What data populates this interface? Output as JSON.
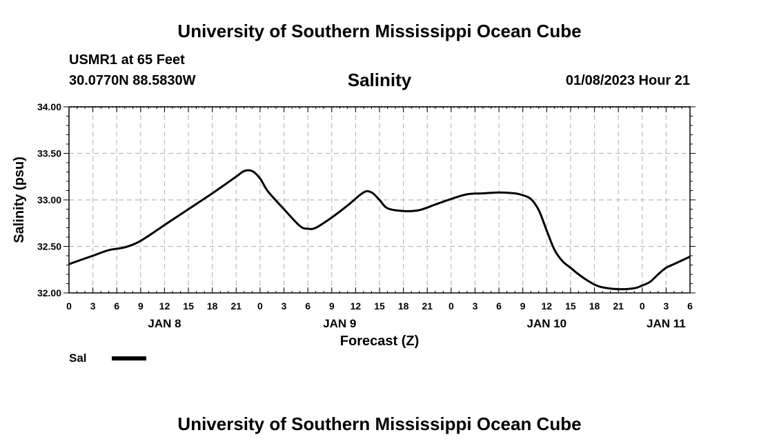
{
  "header": {
    "title": "University of Southern Mississippi Ocean Cube",
    "station": "USMR1 at 65 Feet",
    "coords": "30.0770N  88.5830W",
    "datetime": "01/08/2023 Hour 21"
  },
  "footer": {
    "title": "University of Southern Mississippi Ocean Cube"
  },
  "legend": {
    "label": "Sal",
    "color": "#000000"
  },
  "chart_data": {
    "type": "line",
    "title": "Salinity",
    "xlabel": "Forecast (Z)",
    "ylabel": "Salinity (psu)",
    "xlim": [
      0,
      78
    ],
    "ylim": [
      32.0,
      34.0
    ],
    "x_unit": "hours since 2023-01-08 00Z",
    "grid": true,
    "y_ticks": [
      32.0,
      32.5,
      33.0,
      33.5,
      34.0
    ],
    "y_tick_labels": [
      "32.00",
      "32.50",
      "33.00",
      "33.50",
      "34.00"
    ],
    "x_ticks": [
      0,
      3,
      6,
      9,
      12,
      15,
      18,
      21,
      24,
      27,
      30,
      33,
      36,
      39,
      42,
      45,
      48,
      51,
      54,
      57,
      60,
      63,
      66,
      69,
      72,
      75,
      78
    ],
    "x_tick_labels": [
      "0",
      "3",
      "6",
      "9",
      "12",
      "15",
      "18",
      "21",
      "0",
      "3",
      "6",
      "9",
      "12",
      "15",
      "18",
      "21",
      "0",
      "3",
      "6",
      "9",
      "12",
      "15",
      "18",
      "21",
      "0",
      "3",
      "6"
    ],
    "day_labels": [
      {
        "x": 12,
        "label": "JAN 8"
      },
      {
        "x": 34,
        "label": "JAN 9"
      },
      {
        "x": 60,
        "label": "JAN 10"
      },
      {
        "x": 75,
        "label": "JAN 11"
      }
    ],
    "series": [
      {
        "name": "Sal",
        "x": [
          0,
          3,
          5,
          7,
          9,
          12,
          15,
          18,
          21,
          22,
          23,
          24,
          25,
          27,
          29,
          30,
          31,
          33,
          35,
          37,
          38,
          39,
          40,
          42,
          44,
          46,
          48,
          50,
          52,
          54,
          56,
          57,
          58,
          59,
          60,
          61,
          62,
          63,
          64,
          65,
          66,
          67,
          69,
          71,
          72,
          73,
          74,
          75,
          76,
          77,
          78
        ],
        "values": [
          32.31,
          32.4,
          32.46,
          32.49,
          32.56,
          32.73,
          32.9,
          33.07,
          33.25,
          33.31,
          33.31,
          33.23,
          33.09,
          32.9,
          32.72,
          32.69,
          32.7,
          32.81,
          32.94,
          33.08,
          33.08,
          33.0,
          32.91,
          32.88,
          32.89,
          32.95,
          33.01,
          33.06,
          33.07,
          33.08,
          33.07,
          33.05,
          33.01,
          32.89,
          32.67,
          32.46,
          32.34,
          32.27,
          32.2,
          32.14,
          32.09,
          32.06,
          32.04,
          32.05,
          32.08,
          32.12,
          32.2,
          32.27,
          32.31,
          32.35,
          32.39
        ]
      }
    ]
  }
}
